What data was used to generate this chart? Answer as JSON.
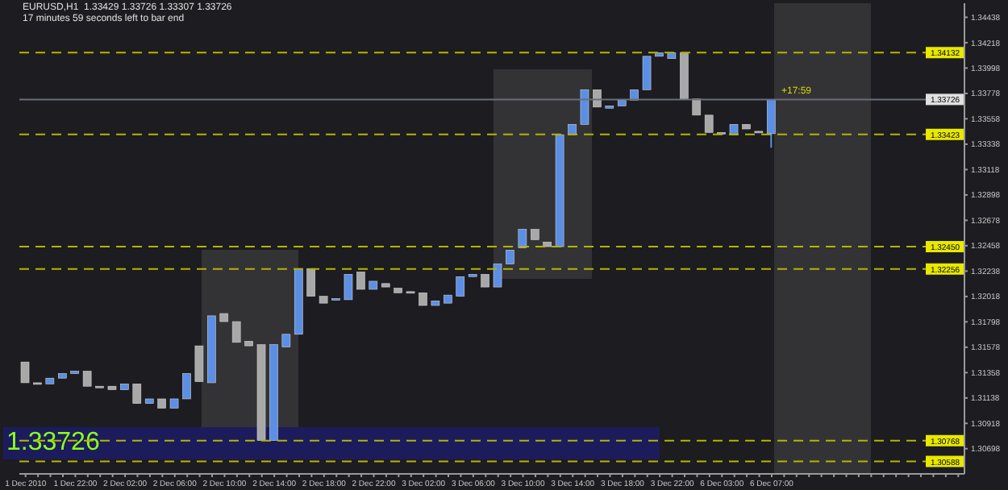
{
  "chart_data": {
    "type": "candlestick",
    "title": "EURUSD,H1  1.33429 1.33726 1.33307 1.33726",
    "subtitle": "17 minutes 59 seconds left to bar end",
    "categories": [
      "1 Dec 2010",
      null,
      null,
      null,
      "1 Dec 22:00",
      null,
      null,
      null,
      "2 Dec 02:00",
      null,
      null,
      null,
      "2 Dec 06:00",
      null,
      null,
      null,
      "2 Dec 10:00",
      null,
      null,
      null,
      "2 Dec 14:00",
      null,
      null,
      null,
      "2 Dec 18:00",
      null,
      null,
      null,
      "2 Dec 22:00",
      null,
      null,
      null,
      "3 Dec 02:00",
      null,
      null,
      null,
      "3 Dec 06:00",
      null,
      null,
      null,
      "3 Dec 10:00",
      null,
      null,
      null,
      "3 Dec 14:00",
      null,
      null,
      null,
      "3 Dec 18:00",
      null,
      null,
      null,
      "3 Dec 22:00",
      null,
      null,
      null,
      "6 Dec 03:00",
      null,
      null,
      null,
      "6 Dec 07:00",
      null,
      null,
      null,
      null,
      null,
      null,
      null,
      null,
      null,
      null,
      null,
      null,
      null,
      null,
      null
    ],
    "ohlc": [
      [
        1.3145,
        1.3145,
        1.3127,
        1.3127
      ],
      [
        1.3127,
        1.3127,
        1.3126,
        1.3126
      ],
      [
        1.3126,
        1.3131,
        1.3126,
        1.3131
      ],
      [
        1.3131,
        1.3135,
        1.3131,
        1.3135
      ],
      [
        1.3135,
        1.3137,
        1.3135,
        1.3137
      ],
      [
        1.3137,
        1.3137,
        1.3124,
        1.3124
      ],
      [
        1.3124,
        1.3124,
        1.3124,
        1.3124
      ],
      [
        1.3124,
        1.3124,
        1.3121,
        1.3121
      ],
      [
        1.3121,
        1.3126,
        1.3121,
        1.3126
      ],
      [
        1.3126,
        1.3126,
        1.3109,
        1.3109
      ],
      [
        1.3109,
        1.3113,
        1.3109,
        1.3113
      ],
      [
        1.3113,
        1.3113,
        1.3105,
        1.3105
      ],
      [
        1.3105,
        1.3113,
        1.3105,
        1.3113
      ],
      [
        1.3113,
        1.3135,
        1.3113,
        1.3135
      ],
      [
        1.3159,
        1.3159,
        1.3128,
        1.3128
      ],
      [
        1.3127,
        1.3185,
        1.3127,
        1.3185
      ],
      [
        1.3187,
        1.3187,
        1.318,
        1.318
      ],
      [
        1.318,
        1.318,
        1.3162,
        1.3162
      ],
      [
        1.3163,
        1.3163,
        1.3159,
        1.3159
      ],
      [
        1.316,
        1.316,
        1.3077,
        1.3077
      ],
      [
        1.3077,
        1.316,
        1.3077,
        1.316
      ],
      [
        1.3158,
        1.3169,
        1.3158,
        1.3169
      ],
      [
        1.3169,
        1.3226,
        1.3169,
        1.3226
      ],
      [
        1.3226,
        1.3226,
        1.3202,
        1.3202
      ],
      [
        1.3202,
        1.3202,
        1.3196,
        1.3196
      ],
      [
        1.3199,
        1.32,
        1.3199,
        1.32
      ],
      [
        1.3199,
        1.3221,
        1.3199,
        1.3221
      ],
      [
        1.3223,
        1.3223,
        1.3208,
        1.3208
      ],
      [
        1.3208,
        1.3215,
        1.3208,
        1.3215
      ],
      [
        1.3213,
        1.3213,
        1.321,
        1.321
      ],
      [
        1.3209,
        1.3209,
        1.3205,
        1.3205
      ],
      [
        1.3206,
        1.3206,
        1.3205,
        1.3205
      ],
      [
        1.3205,
        1.3205,
        1.3194,
        1.3194
      ],
      [
        1.3194,
        1.3198,
        1.3194,
        1.3198
      ],
      [
        1.3196,
        1.3203,
        1.3196,
        1.3203
      ],
      [
        1.3202,
        1.3219,
        1.3202,
        1.3219
      ],
      [
        1.3219,
        1.3221,
        1.3219,
        1.3221
      ],
      [
        1.3221,
        1.3221,
        1.321,
        1.321
      ],
      [
        1.321,
        1.323,
        1.321,
        1.323
      ],
      [
        1.323,
        1.3242,
        1.323,
        1.3242
      ],
      [
        1.3244,
        1.326,
        1.3244,
        1.326
      ],
      [
        1.326,
        1.326,
        1.3251,
        1.3251
      ],
      [
        1.3249,
        1.3249,
        1.3245,
        1.3245
      ],
      [
        1.3245,
        1.3342,
        1.3245,
        1.3342
      ],
      [
        1.3342,
        1.3351,
        1.3342,
        1.3351
      ],
      [
        1.3351,
        1.3381,
        1.3351,
        1.3381
      ],
      [
        1.3381,
        1.3381,
        1.3366,
        1.3366
      ],
      [
        1.3365,
        1.3367,
        1.3365,
        1.3367
      ],
      [
        1.3367,
        1.3372,
        1.3367,
        1.3372
      ],
      [
        1.3372,
        1.3381,
        1.3372,
        1.3381
      ],
      [
        1.3381,
        1.341,
        1.3381,
        1.341
      ],
      [
        1.341,
        1.3413,
        1.341,
        1.3413
      ],
      [
        1.3408,
        1.3413,
        1.3408,
        1.3413
      ],
      [
        1.3413,
        1.3413,
        1.3373,
        1.3373
      ],
      [
        1.3373,
        1.3373,
        1.3359,
        1.3359
      ],
      [
        1.3359,
        1.3359,
        1.3344,
        1.3344
      ],
      [
        1.3344,
        1.3344,
        1.3344,
        1.3344
      ],
      [
        1.3342,
        1.3351,
        1.3342,
        1.3351
      ],
      [
        1.3351,
        1.3351,
        1.3347,
        1.3347
      ],
      [
        1.3345,
        1.3345,
        1.3344,
        1.3344
      ],
      [
        1.33429,
        1.33726,
        1.33307,
        1.33726
      ],
      null,
      null,
      null,
      null,
      null,
      null,
      null,
      null,
      null,
      null,
      null,
      null,
      null,
      null,
      null
    ],
    "colors": [
      "#a8a8a8",
      "#a8a8a8",
      "#5b8fe6",
      "#5b8fe6",
      "#5b8fe6",
      "#a8a8a8",
      "#a8a8a8",
      "#a8a8a8",
      "#5b8fe6",
      "#a8a8a8",
      "#5b8fe6",
      "#a8a8a8",
      "#5b8fe6",
      "#5b8fe6",
      "#a8a8a8",
      "#5b8fe6",
      "#a8a8a8",
      "#a8a8a8",
      "#a8a8a8",
      "#a8a8a8",
      "#5b8fe6",
      "#5b8fe6",
      "#5b8fe6",
      "#a8a8a8",
      "#a8a8a8",
      "#5b8fe6",
      "#5b8fe6",
      "#a8a8a8",
      "#5b8fe6",
      "#a8a8a8",
      "#a8a8a8",
      "#a8a8a8",
      "#a8a8a8",
      "#5b8fe6",
      "#5b8fe6",
      "#5b8fe6",
      "#5b8fe6",
      "#a8a8a8",
      "#5b8fe6",
      "#5b8fe6",
      "#5b8fe6",
      "#a8a8a8",
      "#a8a8a8",
      "#5b8fe6",
      "#5b8fe6",
      "#5b8fe6",
      "#a8a8a8",
      "#5b8fe6",
      "#5b8fe6",
      "#5b8fe6",
      "#5b8fe6",
      "#5b8fe6",
      "#5b8fe6",
      "#a8a8a8",
      "#a8a8a8",
      "#a8a8a8",
      "#a8a8a8",
      "#5b8fe6",
      "#a8a8a8",
      "#a8a8a8",
      "#5b8fe6",
      null,
      null,
      null,
      null,
      null,
      null,
      null,
      null,
      null,
      null,
      null,
      null,
      null,
      null,
      null
    ],
    "ylim": [
      1.3048,
      1.3456
    ],
    "yticks": [
      1.34438,
      1.34218,
      1.33998,
      1.33778,
      1.33558,
      1.33338,
      1.33118,
      1.32898,
      1.32678,
      1.32458,
      1.32238,
      1.32018,
      1.31798,
      1.31578,
      1.31358,
      1.31138,
      1.30918,
      1.30698
    ],
    "ref_lines": [
      {
        "axis": "y",
        "value": 1.34132,
        "label": "1.34132",
        "color": "#b5b500",
        "line_style": "dashed"
      },
      {
        "axis": "y",
        "value": 1.33726,
        "label": "1.33726",
        "color": "#6a6e78",
        "line_style": "solid"
      },
      {
        "axis": "y",
        "value": 1.33423,
        "label": "1.33423",
        "color": "#b5b500",
        "line_style": "dashed"
      },
      {
        "axis": "y",
        "value": 1.3245,
        "label": "1.32450",
        "color": "#b5b500",
        "line_style": "dashed"
      },
      {
        "axis": "y",
        "value": 1.32256,
        "label": "1.32256",
        "color": "#b5b500",
        "line_style": "dashed"
      },
      {
        "axis": "y",
        "value": 1.30768,
        "label": "1.30768",
        "color": "#b5b500",
        "line_style": "dashed"
      },
      {
        "axis": "y",
        "value": 1.30588,
        "label": "1.30588",
        "color": "#b5b500",
        "line_style": "dashed"
      }
    ],
    "annotations": [
      "1.33726",
      "+17:59"
    ]
  }
}
